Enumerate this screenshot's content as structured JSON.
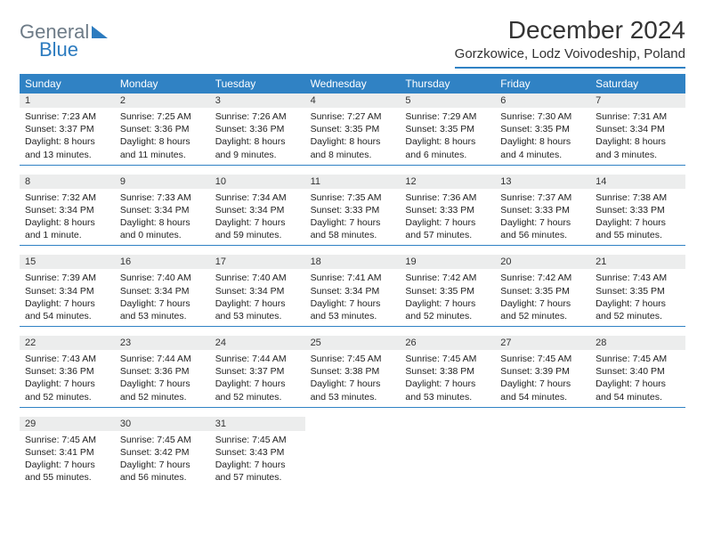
{
  "logo": {
    "general": "General",
    "blue": "Blue"
  },
  "title": "December 2024",
  "subtitle": "Gorzkowice, Lodz Voivodeship, Poland",
  "colors": {
    "header_bg": "#3082c4",
    "daynum_bg": "#eceded",
    "rule": "#3082c4",
    "logo_gray": "#6d7b87",
    "logo_blue": "#2c7bbf"
  },
  "weekdays": [
    "Sunday",
    "Monday",
    "Tuesday",
    "Wednesday",
    "Thursday",
    "Friday",
    "Saturday"
  ],
  "days": [
    {
      "n": "1",
      "sr": "Sunrise: 7:23 AM",
      "ss": "Sunset: 3:37 PM",
      "d1": "Daylight: 8 hours",
      "d2": "and 13 minutes."
    },
    {
      "n": "2",
      "sr": "Sunrise: 7:25 AM",
      "ss": "Sunset: 3:36 PM",
      "d1": "Daylight: 8 hours",
      "d2": "and 11 minutes."
    },
    {
      "n": "3",
      "sr": "Sunrise: 7:26 AM",
      "ss": "Sunset: 3:36 PM",
      "d1": "Daylight: 8 hours",
      "d2": "and 9 minutes."
    },
    {
      "n": "4",
      "sr": "Sunrise: 7:27 AM",
      "ss": "Sunset: 3:35 PM",
      "d1": "Daylight: 8 hours",
      "d2": "and 8 minutes."
    },
    {
      "n": "5",
      "sr": "Sunrise: 7:29 AM",
      "ss": "Sunset: 3:35 PM",
      "d1": "Daylight: 8 hours",
      "d2": "and 6 minutes."
    },
    {
      "n": "6",
      "sr": "Sunrise: 7:30 AM",
      "ss": "Sunset: 3:35 PM",
      "d1": "Daylight: 8 hours",
      "d2": "and 4 minutes."
    },
    {
      "n": "7",
      "sr": "Sunrise: 7:31 AM",
      "ss": "Sunset: 3:34 PM",
      "d1": "Daylight: 8 hours",
      "d2": "and 3 minutes."
    },
    {
      "n": "8",
      "sr": "Sunrise: 7:32 AM",
      "ss": "Sunset: 3:34 PM",
      "d1": "Daylight: 8 hours",
      "d2": "and 1 minute."
    },
    {
      "n": "9",
      "sr": "Sunrise: 7:33 AM",
      "ss": "Sunset: 3:34 PM",
      "d1": "Daylight: 8 hours",
      "d2": "and 0 minutes."
    },
    {
      "n": "10",
      "sr": "Sunrise: 7:34 AM",
      "ss": "Sunset: 3:34 PM",
      "d1": "Daylight: 7 hours",
      "d2": "and 59 minutes."
    },
    {
      "n": "11",
      "sr": "Sunrise: 7:35 AM",
      "ss": "Sunset: 3:33 PM",
      "d1": "Daylight: 7 hours",
      "d2": "and 58 minutes."
    },
    {
      "n": "12",
      "sr": "Sunrise: 7:36 AM",
      "ss": "Sunset: 3:33 PM",
      "d1": "Daylight: 7 hours",
      "d2": "and 57 minutes."
    },
    {
      "n": "13",
      "sr": "Sunrise: 7:37 AM",
      "ss": "Sunset: 3:33 PM",
      "d1": "Daylight: 7 hours",
      "d2": "and 56 minutes."
    },
    {
      "n": "14",
      "sr": "Sunrise: 7:38 AM",
      "ss": "Sunset: 3:33 PM",
      "d1": "Daylight: 7 hours",
      "d2": "and 55 minutes."
    },
    {
      "n": "15",
      "sr": "Sunrise: 7:39 AM",
      "ss": "Sunset: 3:34 PM",
      "d1": "Daylight: 7 hours",
      "d2": "and 54 minutes."
    },
    {
      "n": "16",
      "sr": "Sunrise: 7:40 AM",
      "ss": "Sunset: 3:34 PM",
      "d1": "Daylight: 7 hours",
      "d2": "and 53 minutes."
    },
    {
      "n": "17",
      "sr": "Sunrise: 7:40 AM",
      "ss": "Sunset: 3:34 PM",
      "d1": "Daylight: 7 hours",
      "d2": "and 53 minutes."
    },
    {
      "n": "18",
      "sr": "Sunrise: 7:41 AM",
      "ss": "Sunset: 3:34 PM",
      "d1": "Daylight: 7 hours",
      "d2": "and 53 minutes."
    },
    {
      "n": "19",
      "sr": "Sunrise: 7:42 AM",
      "ss": "Sunset: 3:35 PM",
      "d1": "Daylight: 7 hours",
      "d2": "and 52 minutes."
    },
    {
      "n": "20",
      "sr": "Sunrise: 7:42 AM",
      "ss": "Sunset: 3:35 PM",
      "d1": "Daylight: 7 hours",
      "d2": "and 52 minutes."
    },
    {
      "n": "21",
      "sr": "Sunrise: 7:43 AM",
      "ss": "Sunset: 3:35 PM",
      "d1": "Daylight: 7 hours",
      "d2": "and 52 minutes."
    },
    {
      "n": "22",
      "sr": "Sunrise: 7:43 AM",
      "ss": "Sunset: 3:36 PM",
      "d1": "Daylight: 7 hours",
      "d2": "and 52 minutes."
    },
    {
      "n": "23",
      "sr": "Sunrise: 7:44 AM",
      "ss": "Sunset: 3:36 PM",
      "d1": "Daylight: 7 hours",
      "d2": "and 52 minutes."
    },
    {
      "n": "24",
      "sr": "Sunrise: 7:44 AM",
      "ss": "Sunset: 3:37 PM",
      "d1": "Daylight: 7 hours",
      "d2": "and 52 minutes."
    },
    {
      "n": "25",
      "sr": "Sunrise: 7:45 AM",
      "ss": "Sunset: 3:38 PM",
      "d1": "Daylight: 7 hours",
      "d2": "and 53 minutes."
    },
    {
      "n": "26",
      "sr": "Sunrise: 7:45 AM",
      "ss": "Sunset: 3:38 PM",
      "d1": "Daylight: 7 hours",
      "d2": "and 53 minutes."
    },
    {
      "n": "27",
      "sr": "Sunrise: 7:45 AM",
      "ss": "Sunset: 3:39 PM",
      "d1": "Daylight: 7 hours",
      "d2": "and 54 minutes."
    },
    {
      "n": "28",
      "sr": "Sunrise: 7:45 AM",
      "ss": "Sunset: 3:40 PM",
      "d1": "Daylight: 7 hours",
      "d2": "and 54 minutes."
    },
    {
      "n": "29",
      "sr": "Sunrise: 7:45 AM",
      "ss": "Sunset: 3:41 PM",
      "d1": "Daylight: 7 hours",
      "d2": "and 55 minutes."
    },
    {
      "n": "30",
      "sr": "Sunrise: 7:45 AM",
      "ss": "Sunset: 3:42 PM",
      "d1": "Daylight: 7 hours",
      "d2": "and 56 minutes."
    },
    {
      "n": "31",
      "sr": "Sunrise: 7:45 AM",
      "ss": "Sunset: 3:43 PM",
      "d1": "Daylight: 7 hours",
      "d2": "and 57 minutes."
    }
  ]
}
